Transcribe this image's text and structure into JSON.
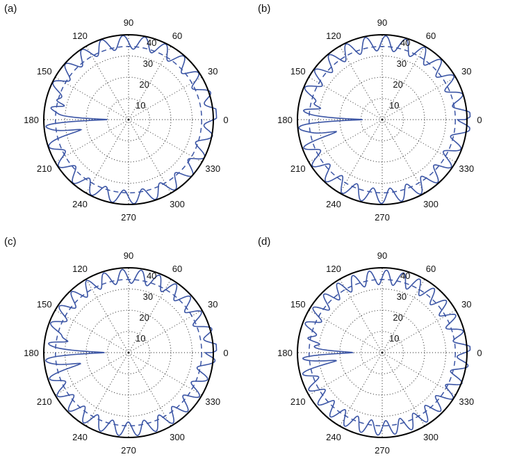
{
  "chart_data": [
    {
      "type": "polar-line",
      "panel_label": "(a)",
      "angular_ticks": [
        "0",
        "30",
        "60",
        "90",
        "120",
        "150",
        "180",
        "210",
        "240",
        "270",
        "300",
        "330"
      ],
      "radial_ticks": [
        "10",
        "20",
        "30",
        "40"
      ],
      "rlim": [
        0,
        40
      ],
      "grid": true,
      "series": [
        {
          "style": "solid",
          "color": "#3b55a5",
          "base_radius": 36.5,
          "ripple_amplitude": 3.2,
          "ripple_period_deg": 15,
          "spikes_deg": [
            {
              "angle": 180,
              "min_radius": 10
            },
            {
              "angle": 192,
              "min_radius": 26
            },
            {
              "angle": 168,
              "min_radius": 28
            }
          ],
          "lobes_deg": [
            {
              "angle": 5,
              "peak_radius": 41
            },
            {
              "angle": 325,
              "peak_radius": 37
            }
          ]
        },
        {
          "style": "dashed",
          "color": "#3b55a5",
          "radius": 34.5
        }
      ]
    },
    {
      "type": "polar-line",
      "panel_label": "(b)",
      "angular_ticks": [
        "0",
        "30",
        "60",
        "90",
        "120",
        "150",
        "180",
        "210",
        "240",
        "270",
        "300",
        "330"
      ],
      "radial_ticks": [
        "10",
        "20",
        "30",
        "40"
      ],
      "rlim": [
        0,
        40
      ],
      "grid": true,
      "series": [
        {
          "style": "solid",
          "color": "#3b55a5",
          "base_radius": 36,
          "ripple_amplitude": 3.5,
          "ripple_period_deg": 14,
          "spikes_deg": [
            {
              "angle": 180,
              "min_radius": 12
            },
            {
              "angle": 195,
              "min_radius": 24
            },
            {
              "angle": 170,
              "min_radius": 27
            }
          ],
          "lobes_deg": [
            {
              "angle": 0,
              "peak_radius": 39
            }
          ]
        },
        {
          "style": "dashed",
          "color": "#3b55a5",
          "radius": 34.5
        }
      ]
    },
    {
      "type": "polar-line",
      "panel_label": "(c)",
      "angular_ticks": [
        "0",
        "30",
        "60",
        "90",
        "120",
        "150",
        "180",
        "210",
        "240",
        "270",
        "300",
        "330"
      ],
      "radial_ticks": [
        "10",
        "20",
        "30",
        "40"
      ],
      "rlim": [
        0,
        40
      ],
      "grid": true,
      "series": [
        {
          "style": "solid",
          "color": "#3b55a5",
          "base_radius": 36,
          "ripple_amplitude": 3.3,
          "ripple_period_deg": 13,
          "spikes_deg": [
            {
              "angle": 180,
              "min_radius": 14
            },
            {
              "angle": 193,
              "min_radius": 26
            },
            {
              "angle": 170,
              "min_radius": 28
            }
          ],
          "lobes_deg": [
            {
              "angle": 5,
              "peak_radius": 40
            }
          ]
        },
        {
          "style": "dashed",
          "color": "#3b55a5",
          "radius": 34.5
        }
      ]
    },
    {
      "type": "polar-line",
      "panel_label": "(d)",
      "angular_ticks": [
        "0",
        "30",
        "60",
        "90",
        "120",
        "150",
        "180",
        "210",
        "240",
        "270",
        "300",
        "330"
      ],
      "radial_ticks": [
        "10",
        "20",
        "30",
        "40"
      ],
      "rlim": [
        0,
        40
      ],
      "grid": true,
      "series": [
        {
          "style": "solid",
          "color": "#3b55a5",
          "base_radius": 35.5,
          "ripple_amplitude": 3.4,
          "ripple_period_deg": 12,
          "spikes_deg": [
            {
              "angle": 180,
              "min_radius": 14
            },
            {
              "angle": 190,
              "min_radius": 25
            },
            {
              "angle": 172,
              "min_radius": 27
            }
          ],
          "lobes_deg": [
            {
              "angle": 0,
              "peak_radius": 39
            },
            {
              "angle": 335,
              "peak_radius": 37
            }
          ]
        },
        {
          "style": "dashed",
          "color": "#3b55a5",
          "radius": 34.5
        }
      ]
    }
  ]
}
